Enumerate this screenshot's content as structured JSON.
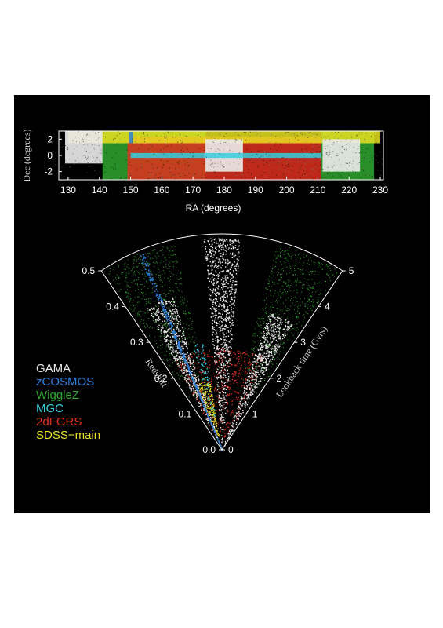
{
  "chart_data": [
    {
      "type": "scatter",
      "title": "",
      "xlabel": "RA (degrees)",
      "ylabel": "Dec (degrees)",
      "xlim": [
        127,
        231
      ],
      "ylim": [
        -3,
        3
      ],
      "xticks": [
        "130",
        "140",
        "150",
        "160",
        "170",
        "180",
        "190",
        "200",
        "210",
        "220",
        "230"
      ],
      "yticks": [
        "2",
        "0",
        "-2"
      ],
      "footprints": [
        {
          "survey": "GAMA",
          "ra": [
            129.0,
            141.0
          ],
          "dec": [
            -1.0,
            3.0
          ]
        },
        {
          "survey": "GAMA",
          "ra": [
            174.0,
            186.0
          ],
          "dec": [
            -2.0,
            2.0
          ]
        },
        {
          "survey": "GAMA",
          "ra": [
            211.5,
            223.5
          ],
          "dec": [
            -2.0,
            2.0
          ]
        },
        {
          "survey": "zCOSMOS",
          "ra": [
            149.5,
            150.8
          ],
          "dec": [
            1.5,
            2.9
          ]
        },
        {
          "survey": "WiggleZ",
          "ra": [
            141.0,
            174.0
          ],
          "dec": [
            -3.0,
            3.0
          ]
        },
        {
          "survey": "WiggleZ",
          "ra": [
            211.0,
            228.0
          ],
          "dec": [
            -3.0,
            3.0
          ]
        },
        {
          "survey": "MGC",
          "ra": [
            150.0,
            211.0
          ],
          "dec": [
            -0.3,
            0.3
          ]
        },
        {
          "survey": "2dFGRS",
          "ra": [
            149.0,
            211.0
          ],
          "dec": [
            -3.0,
            2.3
          ]
        },
        {
          "survey": "SDSS-main",
          "ra": [
            130.0,
            230.0
          ],
          "dec": [
            1.5,
            3.0
          ]
        }
      ]
    },
    {
      "type": "scatter",
      "title": "",
      "xlabel": "Redshift",
      "ylabel": "Lookback time (Gyrs)",
      "redshift_ticks": [
        "0.0",
        "0.1",
        "0.2",
        "0.3",
        "0.4",
        "0.5"
      ],
      "lookback_ticks": [
        "0",
        "1",
        "2",
        "3",
        "4",
        "5"
      ],
      "redshift_range": [
        0,
        0.5
      ],
      "lookback_range": [
        0,
        5
      ],
      "legend_placement": "left",
      "series": [
        {
          "name": "GAMA"
        },
        {
          "name": "zCOSMOS"
        },
        {
          "name": "WiggleZ"
        },
        {
          "name": "MGC"
        },
        {
          "name": "2dFGRS"
        },
        {
          "name": "SDSS−main"
        }
      ]
    }
  ],
  "colors": {
    "GAMA": "#e8e8e8",
    "zCOSMOS": "#2f7fd6",
    "WiggleZ": "#2fa82f",
    "MGC": "#33d0e0",
    "2dFGRS": "#e0301e",
    "SDSS-main": "#e8e020",
    "background": "#000000"
  }
}
